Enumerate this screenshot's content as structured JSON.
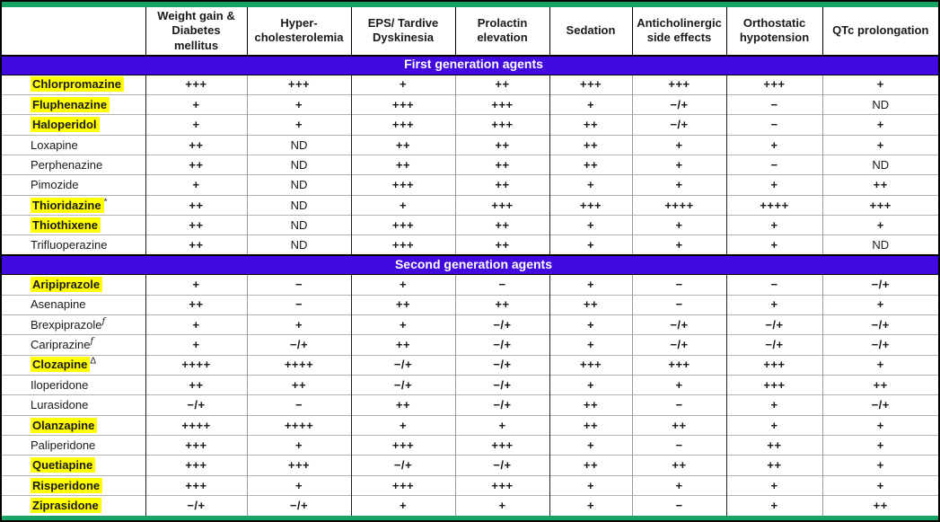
{
  "colors": {
    "accent_green": "#17a464",
    "section_purple": "#4109e0",
    "highlight_yellow": "#ffff00"
  },
  "table": {
    "columns": [
      "",
      "Weight gain & Diabetes mellitus",
      "Hyper-cholesterolemia",
      "EPS/ Tardive Dyskinesia",
      "Prolactin elevation",
      "Sedation",
      "Anticholinergic side effects",
      "Orthostatic hypotension",
      "QTc prolongation"
    ],
    "sections": [
      {
        "label": "First generation agents",
        "rows": [
          {
            "drug": "Chlorpromazine",
            "sup": "",
            "highlight": true,
            "values": [
              "+++",
              "+++",
              "+",
              "++",
              "+++",
              "+++",
              "+++",
              "+"
            ]
          },
          {
            "drug": "Fluphenazine",
            "sup": "",
            "highlight": true,
            "values": [
              "+",
              "+",
              "+++",
              "+++",
              "+",
              "−/+",
              "−",
              "ND"
            ]
          },
          {
            "drug": "Haloperidol",
            "sup": "",
            "highlight": true,
            "values": [
              "+",
              "+",
              "+++",
              "+++",
              "++",
              "−/+",
              "−",
              "+"
            ]
          },
          {
            "drug": "Loxapine",
            "sup": "",
            "highlight": false,
            "values": [
              "++",
              "ND",
              "++",
              "++",
              "++",
              "+",
              "+",
              "+"
            ]
          },
          {
            "drug": "Perphenazine",
            "sup": "",
            "highlight": false,
            "values": [
              "++",
              "ND",
              "++",
              "++",
              "++",
              "+",
              "−",
              "ND"
            ]
          },
          {
            "drug": "Pimozide",
            "sup": "",
            "highlight": false,
            "values": [
              "+",
              "ND",
              "+++",
              "++",
              "+",
              "+",
              "+",
              "++"
            ]
          },
          {
            "drug": "Thioridazine",
            "sup": "*",
            "highlight": true,
            "values": [
              "++",
              "ND",
              "+",
              "+++",
              "+++",
              "++++",
              "++++",
              "+++"
            ]
          },
          {
            "drug": "Thiothixene",
            "sup": "",
            "highlight": true,
            "values": [
              "++",
              "ND",
              "+++",
              "++",
              "+",
              "+",
              "+",
              "+"
            ]
          },
          {
            "drug": "Trifluoperazine",
            "sup": "",
            "highlight": false,
            "values": [
              "++",
              "ND",
              "+++",
              "++",
              "+",
              "+",
              "+",
              "ND"
            ]
          }
        ]
      },
      {
        "label": "Second generation agents",
        "rows": [
          {
            "drug": "Aripiprazole",
            "sup": "",
            "highlight": true,
            "values": [
              "+",
              "−",
              "+",
              "−",
              "+",
              "−",
              "−",
              "−/+"
            ]
          },
          {
            "drug": "Asenapine",
            "sup": "",
            "highlight": false,
            "values": [
              "++",
              "−",
              "++",
              "++",
              "++",
              "−",
              "+",
              "+"
            ]
          },
          {
            "drug": "Brexpiprazole",
            "sup": "ƒ",
            "highlight": false,
            "values": [
              "+",
              "+",
              "+",
              "−/+",
              "+",
              "−/+",
              "−/+",
              "−/+"
            ]
          },
          {
            "drug": "Cariprazine",
            "sup": "ƒ",
            "highlight": false,
            "values": [
              "+",
              "−/+",
              "++",
              "−/+",
              "+",
              "−/+",
              "−/+",
              "−/+"
            ]
          },
          {
            "drug": "Clozapine",
            "sup": "Δ",
            "highlight": true,
            "values": [
              "++++",
              "++++",
              "−/+",
              "−/+",
              "+++",
              "+++",
              "+++",
              "+"
            ]
          },
          {
            "drug": "Iloperidone",
            "sup": "",
            "highlight": false,
            "values": [
              "++",
              "++",
              "−/+",
              "−/+",
              "+",
              "+",
              "+++",
              "++"
            ]
          },
          {
            "drug": "Lurasidone",
            "sup": "",
            "highlight": false,
            "values": [
              "−/+",
              "−",
              "++",
              "−/+",
              "++",
              "−",
              "+",
              "−/+"
            ]
          },
          {
            "drug": "Olanzapine",
            "sup": "",
            "highlight": true,
            "values": [
              "++++",
              "++++",
              "+",
              "+",
              "++",
              "++",
              "+",
              "+"
            ]
          },
          {
            "drug": "Paliperidone",
            "sup": "",
            "highlight": false,
            "values": [
              "+++",
              "+",
              "+++",
              "+++",
              "+",
              "−",
              "++",
              "+"
            ]
          },
          {
            "drug": "Quetiapine",
            "sup": "",
            "highlight": true,
            "values": [
              "+++",
              "+++",
              "−/+",
              "−/+",
              "++",
              "++",
              "++",
              "+"
            ]
          },
          {
            "drug": "Risperidone",
            "sup": "",
            "highlight": true,
            "values": [
              "+++",
              "+",
              "+++",
              "+++",
              "+",
              "+",
              "+",
              "+"
            ]
          },
          {
            "drug": "Ziprasidone",
            "sup": "",
            "highlight": true,
            "values": [
              "−/+",
              "−/+",
              "+",
              "+",
              "+",
              "−",
              "+",
              "++"
            ]
          }
        ]
      }
    ]
  }
}
